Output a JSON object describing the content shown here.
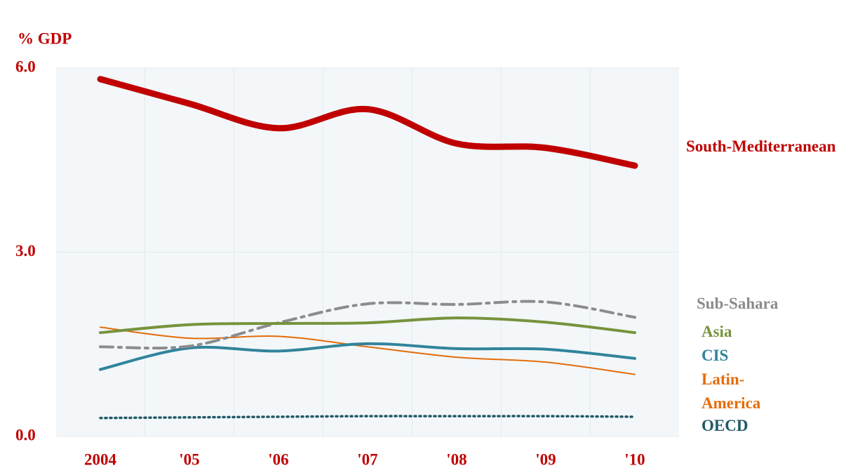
{
  "chart_data": {
    "type": "line",
    "y_label": "% GDP",
    "categories": [
      "2004",
      "'05",
      "'06",
      "'07",
      "'08",
      "'09",
      "'10"
    ],
    "ylim": [
      0,
      6
    ],
    "yticks": [
      {
        "value": 0,
        "label": "0.0"
      },
      {
        "value": 3,
        "label": "3.0"
      },
      {
        "value": 6,
        "label": "6.0"
      }
    ],
    "grid": true,
    "series": [
      {
        "name": "South-Mediterranean",
        "color": "#c00000",
        "values": [
          5.82,
          5.42,
          5.02,
          5.33,
          4.77,
          4.7,
          4.41
        ]
      },
      {
        "name": "Sub-Sahara",
        "color": "#8c8c8c",
        "values": [
          1.46,
          1.47,
          1.85,
          2.16,
          2.15,
          2.19,
          1.94
        ]
      },
      {
        "name": "Asia",
        "color": "#77933c",
        "values": [
          1.69,
          1.82,
          1.84,
          1.85,
          1.93,
          1.86,
          1.69
        ]
      },
      {
        "name": "CIS",
        "color": "#31849b",
        "values": [
          1.09,
          1.44,
          1.39,
          1.51,
          1.43,
          1.42,
          1.27
        ]
      },
      {
        "name": "Latin-America",
        "color": "#e46c0a",
        "values": [
          1.78,
          1.6,
          1.63,
          1.46,
          1.29,
          1.21,
          1.01
        ]
      },
      {
        "name": "OECD",
        "color": "#215968",
        "values": [
          0.3,
          0.31,
          0.32,
          0.33,
          0.33,
          0.33,
          0.32
        ]
      }
    ]
  }
}
